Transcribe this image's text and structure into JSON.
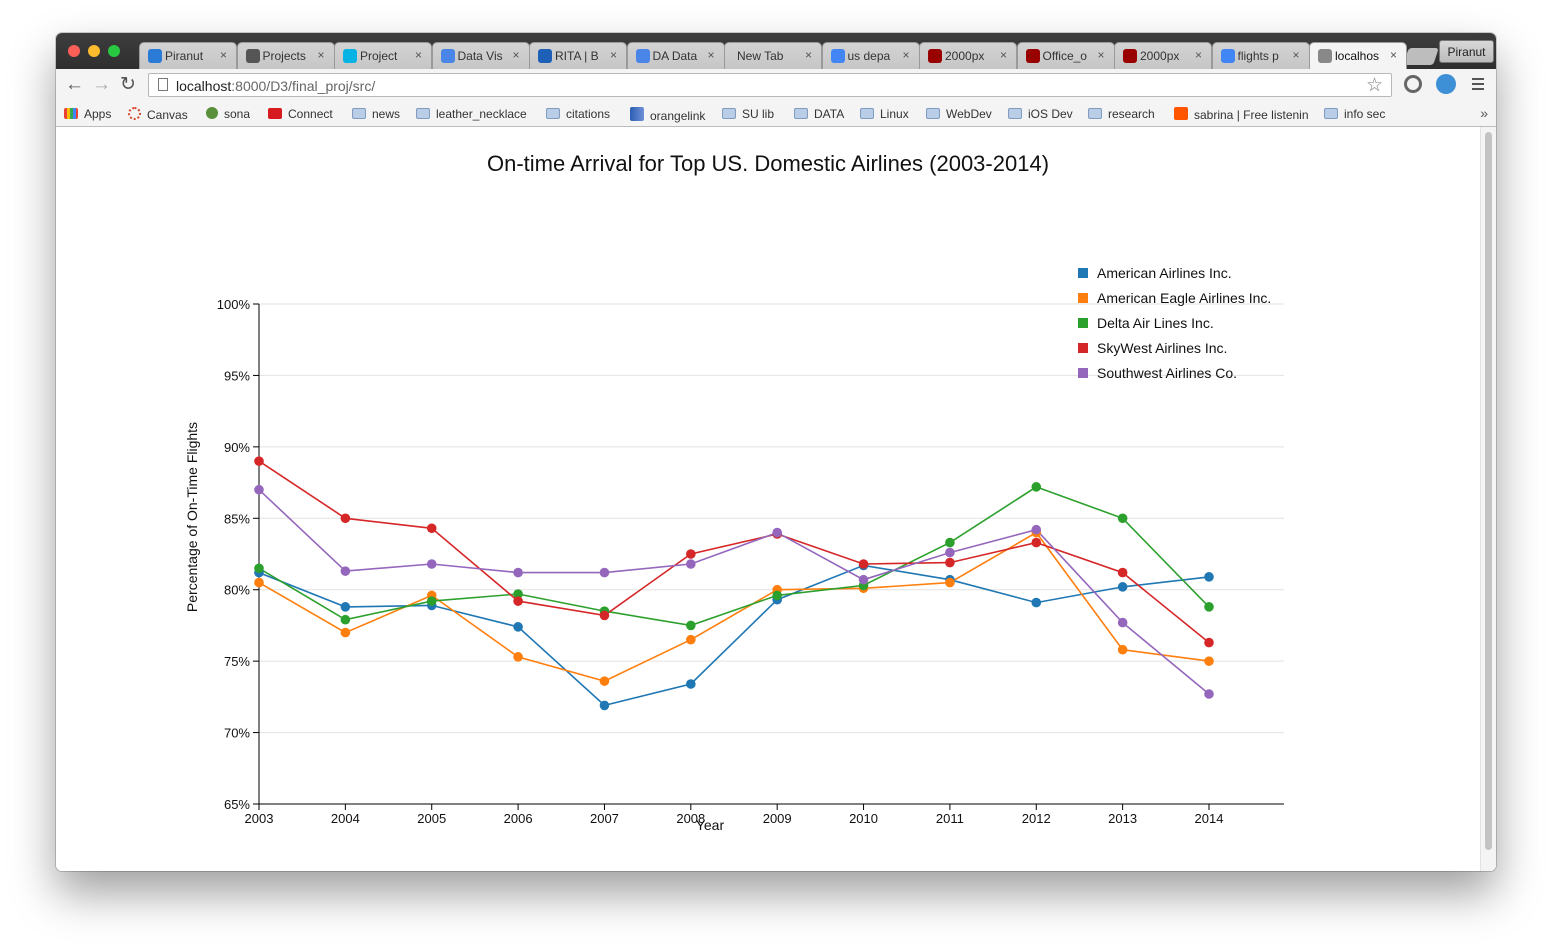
{
  "browser": {
    "tabs": [
      {
        "label": "Piranut",
        "icon": "piranut-icon",
        "color": "#2a7bd6"
      },
      {
        "label": "Projects",
        "icon": "j-icon",
        "color": "#555555"
      },
      {
        "label": "Project",
        "icon": "udacity-icon",
        "color": "#02b3e4"
      },
      {
        "label": "Data Vis",
        "icon": "docs-icon",
        "color": "#4a86e8"
      },
      {
        "label": "RITA | B",
        "icon": "rita-icon",
        "color": "#1e5fb8"
      },
      {
        "label": "DA Data",
        "icon": "docs-icon",
        "color": "#4a86e8"
      },
      {
        "label": "New Tab",
        "icon": "",
        "color": ""
      },
      {
        "label": "us depa",
        "icon": "google-icon",
        "color": "#4285f4"
      },
      {
        "label": "2000px",
        "icon": "wikimedia-icon",
        "color": "#990000"
      },
      {
        "label": "Office_o",
        "icon": "wikimedia-icon",
        "color": "#990000"
      },
      {
        "label": "2000px",
        "icon": "wikimedia-icon",
        "color": "#990000"
      },
      {
        "label": "flights p",
        "icon": "google-icon",
        "color": "#4285f4"
      },
      {
        "label": "localhos",
        "icon": "page-icon",
        "color": "#888888"
      }
    ],
    "close_glyph": "×",
    "profile_label": "Piranut",
    "url_host": "localhost",
    "url_path": ":8000/D3/final_proj/src/",
    "bookmarks": [
      {
        "label": "Apps",
        "icon": "apps-icon"
      },
      {
        "label": "Canvas",
        "icon": "canvas-icon"
      },
      {
        "label": "sona",
        "icon": "sona-icon"
      },
      {
        "label": "Connect",
        "icon": "m-icon"
      },
      {
        "label": "news",
        "icon": "folder-icon"
      },
      {
        "label": "leather_necklace",
        "icon": "folder-icon"
      },
      {
        "label": "citations",
        "icon": "folder-icon"
      },
      {
        "label": "orangelink",
        "icon": "orangelink-icon"
      },
      {
        "label": "SU lib",
        "icon": "folder-icon"
      },
      {
        "label": "DATA",
        "icon": "folder-icon"
      },
      {
        "label": "Linux",
        "icon": "folder-icon"
      },
      {
        "label": "WebDev",
        "icon": "folder-icon"
      },
      {
        "label": "iOS Dev",
        "icon": "folder-icon"
      },
      {
        "label": "research",
        "icon": "folder-icon"
      },
      {
        "label": "sabrina | Free listenin",
        "icon": "soundcloud-icon"
      },
      {
        "label": "info sec",
        "icon": "folder-icon"
      }
    ],
    "bookmarks_more": "»"
  },
  "chart_data": {
    "type": "line",
    "title": "On-time Arrival for Top US. Domestic Airlines (2003-2014)",
    "xlabel": "Year",
    "ylabel": "Percentage of On-Time Flights",
    "x": [
      2003,
      2004,
      2005,
      2006,
      2007,
      2008,
      2009,
      2010,
      2011,
      2012,
      2013,
      2014
    ],
    "ylim": [
      65,
      100
    ],
    "yticks": [
      "65%",
      "70%",
      "75%",
      "80%",
      "85%",
      "90%",
      "95%",
      "100%"
    ],
    "grid": "horizontal",
    "legend_position": "top-right",
    "series": [
      {
        "name": "American Airlines Inc.",
        "color": "#1f77b4",
        "values": [
          81.2,
          78.8,
          78.9,
          77.4,
          71.9,
          73.4,
          79.3,
          81.7,
          80.7,
          79.1,
          80.2,
          80.9
        ]
      },
      {
        "name": "American Eagle Airlines Inc.",
        "color": "#ff7f0e",
        "values": [
          80.5,
          77.0,
          79.6,
          75.3,
          73.6,
          76.5,
          80.0,
          80.1,
          80.5,
          84.0,
          75.8,
          75.0
        ]
      },
      {
        "name": "Delta Air Lines Inc.",
        "color": "#2ca02c",
        "values": [
          81.5,
          77.9,
          79.2,
          79.7,
          78.5,
          77.5,
          79.6,
          80.3,
          83.3,
          87.2,
          85.0,
          78.8
        ]
      },
      {
        "name": "SkyWest Airlines Inc.",
        "color": "#d62728",
        "values": [
          89.0,
          85.0,
          84.3,
          79.2,
          78.2,
          82.5,
          83.9,
          81.8,
          81.9,
          83.3,
          81.2,
          76.3
        ]
      },
      {
        "name": "Southwest Airlines Co.",
        "color": "#9467bd",
        "values": [
          87.0,
          81.3,
          81.8,
          81.2,
          81.2,
          81.8,
          84.0,
          80.7,
          82.6,
          84.2,
          77.7,
          72.7
        ]
      }
    ]
  }
}
